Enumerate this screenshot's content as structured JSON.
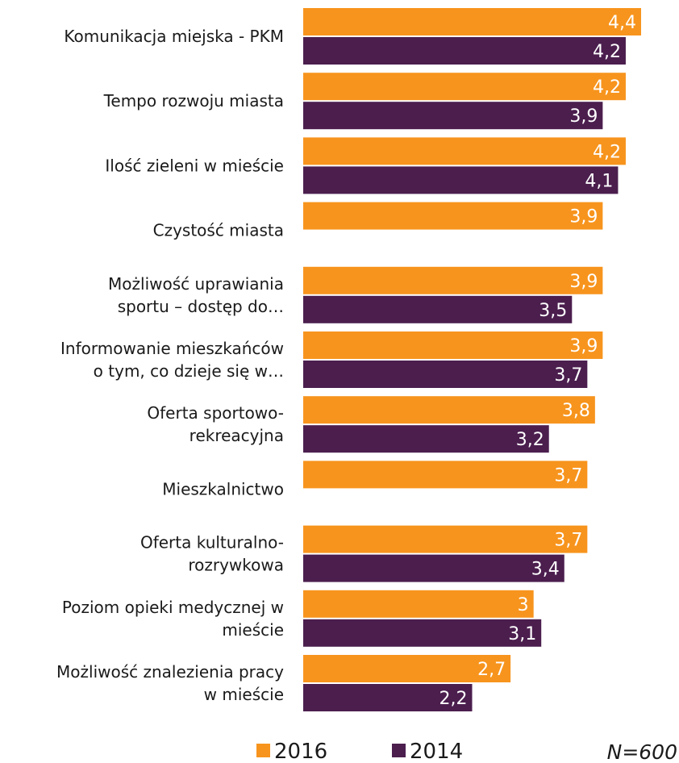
{
  "chart_data": {
    "type": "bar",
    "orientation": "horizontal",
    "categories": [
      [
        "Komunikacja miejska - PKM"
      ],
      [
        "Tempo rozwoju miasta"
      ],
      [
        "Ilość zieleni w mieście"
      ],
      [
        "Czystość miasta"
      ],
      [
        "Możliwość uprawiania",
        "sportu – dostęp do…"
      ],
      [
        "Informowanie mieszkańców",
        "o tym, co dzieje się w…"
      ],
      [
        "Oferta sportowo-",
        "rekreacyjna"
      ],
      [
        "Mieszkalnictwo"
      ],
      [
        "Oferta kulturalno-",
        "rozrywkowa"
      ],
      [
        "Poziom opieki medycznej w",
        "mieście"
      ],
      [
        "Możliwość znalezienia pracy",
        "w mieście"
      ]
    ],
    "series": [
      {
        "name": "2016",
        "color": "#F7941D",
        "values": [
          4.4,
          4.2,
          4.2,
          3.9,
          3.9,
          3.9,
          3.8,
          3.7,
          3.7,
          3.0,
          2.7
        ],
        "labels": [
          "4,4",
          "4,2",
          "4,2",
          "3,9",
          "3,9",
          "3,9",
          "3,8",
          "3,7",
          "3,7",
          "3",
          "2,7"
        ]
      },
      {
        "name": "2014",
        "color": "#4B1E4E",
        "values": [
          4.2,
          3.9,
          4.1,
          null,
          3.5,
          3.7,
          3.2,
          null,
          3.4,
          3.1,
          2.2
        ],
        "labels": [
          "4,2",
          "3,9",
          "4,1",
          null,
          "3,5",
          "3,7",
          "3,2",
          null,
          "3,4",
          "3,1",
          "2,2"
        ]
      }
    ],
    "legend": {
      "position": "bottom",
      "items": [
        "2016",
        "2014"
      ]
    },
    "note": "N=600",
    "xlim": [
      0,
      4.4
    ],
    "grid": false,
    "title": "",
    "xlabel": "",
    "ylabel": ""
  }
}
